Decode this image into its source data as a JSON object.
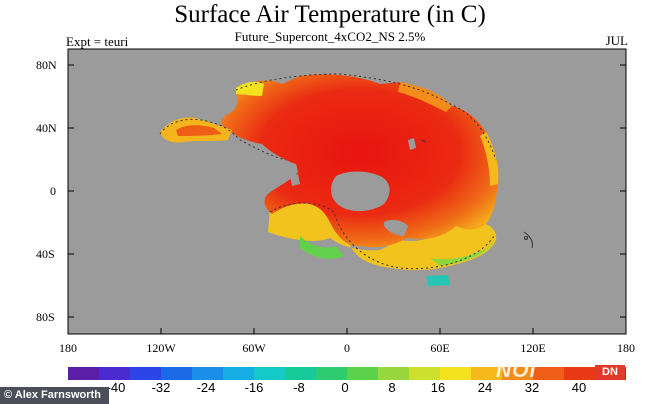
{
  "title": "Surface Air Temperature (in C)",
  "subtitle": "Future_Supercont_4xCO2_NS 2.5%",
  "experiment": "Expt = teuri",
  "month": "JUL",
  "map": {
    "projection": "equirectangular",
    "background_color": "#9b9b9b",
    "lat_ticks": [
      "80N",
      "40N",
      "0",
      "40S",
      "80S"
    ],
    "lon_ticks": [
      "180",
      "120W",
      "60W",
      "0",
      "60E",
      "120E",
      "180"
    ]
  },
  "colorbar": {
    "labels": [
      "-40",
      "-32",
      "-24",
      "-16",
      "-8",
      "0",
      "8",
      "16",
      "24",
      "32",
      "40"
    ],
    "colors": [
      "#5a1fa6",
      "#4a2bd0",
      "#2c45e6",
      "#1d6ae8",
      "#1a8ee8",
      "#16aee2",
      "#14c9c8",
      "#18c99a",
      "#2ecc6e",
      "#5cd24a",
      "#98d83c",
      "#cde02e",
      "#f4e21e",
      "#f6b91c",
      "#f28c1a",
      "#ee5e16",
      "#e83a14",
      "#e21812"
    ]
  },
  "credit": "© Alex Farnsworth",
  "watermark": "NOI",
  "watermark_badge": "DN"
}
